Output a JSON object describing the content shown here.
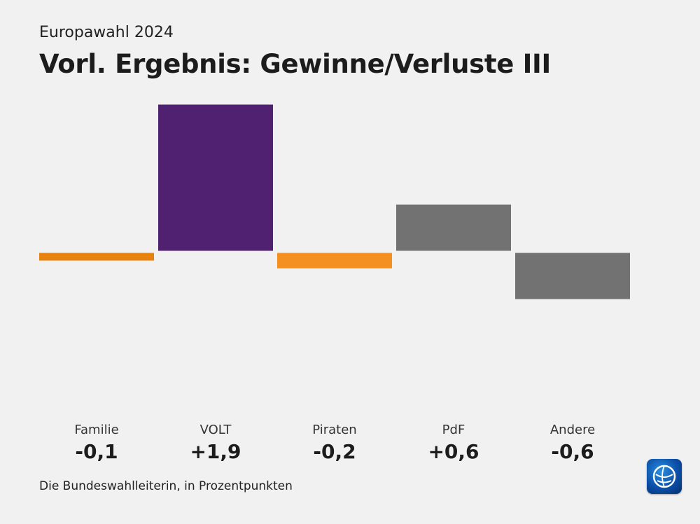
{
  "header": {
    "supertitle": "Europawahl 2024",
    "title": "Vorl. Ergebnis: Gewinne/Verluste III"
  },
  "footer": {
    "source": "Die Bundeswahlleiterin, in Prozentpunkten"
  },
  "logo": {
    "icon": "tagesschau-globe-icon"
  },
  "chart_data": {
    "type": "bar",
    "title": "Vorl. Ergebnis: Gewinne/Verluste III",
    "categories": [
      "Familie",
      "VOLT",
      "Piraten",
      "PdF",
      "Andere"
    ],
    "values": [
      -0.1,
      1.9,
      -0.2,
      0.6,
      -0.6
    ],
    "value_labels": [
      "-0,1",
      "+1,9",
      "-0,2",
      "+0,6",
      "-0,6"
    ],
    "colors": [
      "#e8820e",
      "#4f2170",
      "#f39020",
      "#727272",
      "#727272"
    ],
    "ylim": [
      -1.9,
      1.9
    ],
    "grid": false,
    "legend": "none"
  }
}
